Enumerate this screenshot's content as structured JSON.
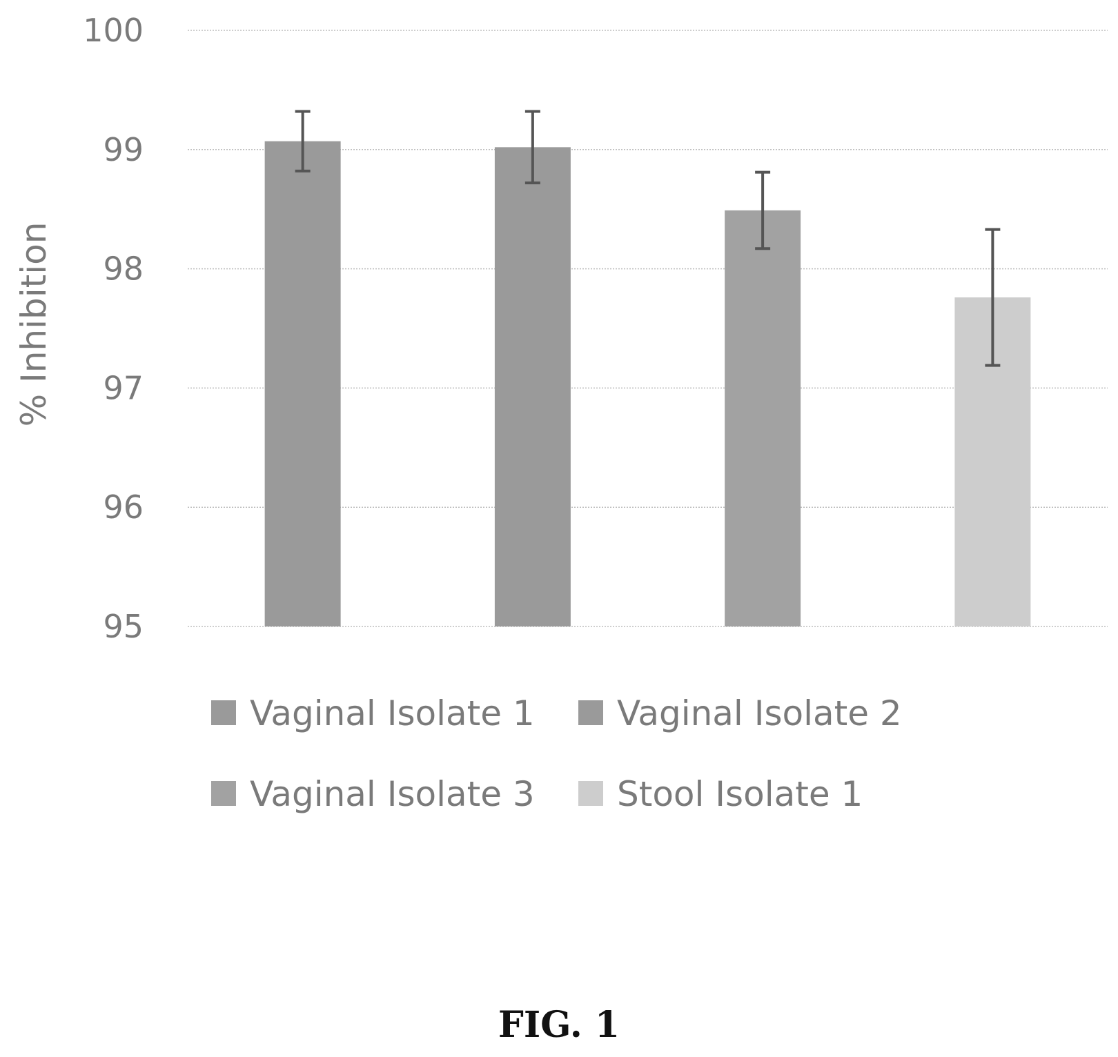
{
  "chart_data": {
    "type": "bar",
    "categories": [
      "Vaginal Isolate 1",
      "Vaginal Isolate 2",
      "Vaginal Isolate 3",
      "Stool Isolate 1"
    ],
    "values": [
      99.07,
      99.02,
      98.49,
      97.76
    ],
    "error": [
      0.25,
      0.3,
      0.32,
      0.57
    ],
    "colors": [
      "#9a9a9a",
      "#9a9a9a",
      "#a2a2a2",
      "#cdcdcd"
    ],
    "title": "",
    "xlabel": "",
    "ylabel": "% Inhibition",
    "ylim": [
      95,
      100
    ],
    "yticks": [
      100,
      99,
      98,
      97,
      96,
      95
    ],
    "grid": true,
    "legend": {
      "placement": "bottom",
      "entries": [
        "Vaginal Isolate 1",
        "Vaginal Isolate 2",
        "Vaginal Isolate 3",
        "Stool Isolate 1"
      ]
    }
  },
  "caption": "FIG. 1"
}
